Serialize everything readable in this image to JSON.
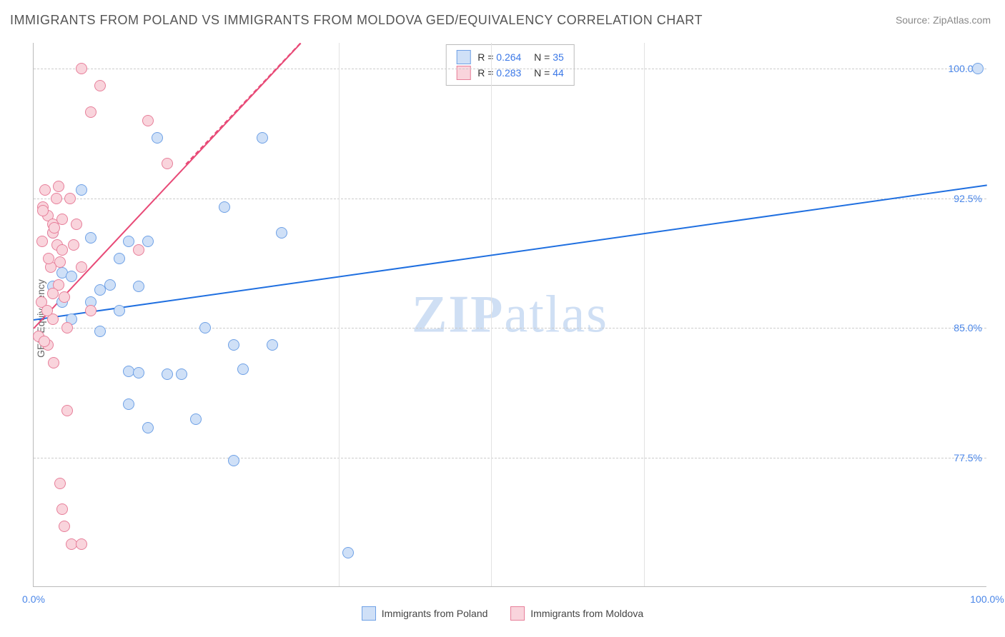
{
  "title": "IMMIGRANTS FROM POLAND VS IMMIGRANTS FROM MOLDOVA GED/EQUIVALENCY CORRELATION CHART",
  "source_prefix": "Source: ",
  "source_name": "ZipAtlas.com",
  "y_axis_label": "GED/Equivalency",
  "watermark_a": "ZIP",
  "watermark_b": "atlas",
  "chart": {
    "type": "scatter",
    "xlim": [
      0,
      100
    ],
    "ylim": [
      70,
      101.5
    ],
    "x_ticks": [
      {
        "v": 0,
        "label": "0.0%"
      },
      {
        "v": 100,
        "label": "100.0%"
      }
    ],
    "x_minor_ticks": [
      32,
      48,
      64
    ],
    "y_ticks": [
      {
        "v": 77.5,
        "label": "77.5%"
      },
      {
        "v": 85,
        "label": "85.0%"
      },
      {
        "v": 92.5,
        "label": "92.5%"
      },
      {
        "v": 100,
        "label": "100.0%"
      }
    ],
    "background_color": "#ffffff",
    "grid_color": "#cccccc",
    "series": [
      {
        "name": "Immigrants from Poland",
        "R": "0.264",
        "N": "35",
        "marker_fill": "#cfe0f7",
        "marker_stroke": "#6fa1e6",
        "trend_color": "#1f6fe0",
        "trend_dash": "none",
        "trend": {
          "x1": 0,
          "y1": 85.5,
          "x2": 100,
          "y2": 93.3
        },
        "points": [
          [
            2,
            90.5
          ],
          [
            3,
            88.2
          ],
          [
            4,
            88.0
          ],
          [
            8,
            87.5
          ],
          [
            6,
            86.5
          ],
          [
            9,
            86.0
          ],
          [
            7,
            84.8
          ],
          [
            10,
            82.5
          ],
          [
            11,
            82.4
          ],
          [
            14,
            82.3
          ],
          [
            10,
            80.6
          ],
          [
            12,
            79.2
          ],
          [
            17,
            79.7
          ],
          [
            15.5,
            82.3
          ],
          [
            22,
            82.6
          ],
          [
            18,
            85.0
          ],
          [
            21,
            84.0
          ],
          [
            25,
            84.0
          ],
          [
            5,
            93.0
          ],
          [
            10,
            90.0
          ],
          [
            12,
            90.0
          ],
          [
            13,
            96.0
          ],
          [
            20,
            92.0
          ],
          [
            26,
            90.5
          ],
          [
            24,
            96.0
          ],
          [
            33,
            72.0
          ],
          [
            21,
            77.3
          ],
          [
            99,
            100.0
          ],
          [
            4,
            85.5
          ],
          [
            6,
            90.2
          ],
          [
            7,
            87.2
          ],
          [
            3,
            86.5
          ],
          [
            11,
            87.4
          ],
          [
            9,
            89.0
          ],
          [
            2,
            87.4
          ]
        ]
      },
      {
        "name": "Immigrants from Moldova",
        "R": "0.283",
        "N": "44",
        "marker_fill": "#f9d4dc",
        "marker_stroke": "#e77f9a",
        "trend_color": "#e84a77",
        "trend_dash": "solid-then-dashed",
        "trend": {
          "x1": 0,
          "y1": 85.0,
          "x2": 28,
          "y2": 101.5
        },
        "trend_dashed": {
          "x1": 16,
          "y1": 94.5,
          "x2": 28,
          "y2": 101.5
        },
        "points": [
          [
            1,
            92.0
          ],
          [
            1.5,
            91.5
          ],
          [
            2,
            91.0
          ],
          [
            2,
            90.5
          ],
          [
            2.5,
            89.8
          ],
          [
            2.2,
            90.8
          ],
          [
            3,
            89.5
          ],
          [
            2.8,
            88.8
          ],
          [
            1.8,
            88.5
          ],
          [
            2.6,
            87.5
          ],
          [
            3.2,
            86.8
          ],
          [
            0.8,
            86.5
          ],
          [
            2.0,
            85.5
          ],
          [
            3.5,
            85.0
          ],
          [
            0.5,
            84.5
          ],
          [
            1.5,
            84.0
          ],
          [
            11,
            89.5
          ],
          [
            6,
            97.5
          ],
          [
            5,
            100.0
          ],
          [
            7,
            99.0
          ],
          [
            14,
            94.5
          ],
          [
            12,
            97.0
          ],
          [
            3.5,
            80.2
          ],
          [
            2.8,
            76.0
          ],
          [
            3.0,
            74.5
          ],
          [
            3.2,
            73.5
          ],
          [
            4.0,
            72.5
          ],
          [
            5.0,
            72.5
          ],
          [
            3.8,
            92.5
          ],
          [
            4.5,
            91.0
          ],
          [
            5.0,
            88.5
          ],
          [
            6.0,
            86.0
          ],
          [
            1.2,
            93.0
          ],
          [
            1.0,
            91.8
          ],
          [
            2.4,
            92.5
          ],
          [
            2.0,
            87.0
          ],
          [
            1.6,
            89.0
          ],
          [
            0.9,
            90.0
          ],
          [
            1.4,
            86.0
          ],
          [
            4.2,
            89.8
          ],
          [
            3.0,
            91.3
          ],
          [
            2.6,
            93.2
          ],
          [
            1.1,
            84.2
          ],
          [
            2.1,
            83.0
          ]
        ]
      }
    ]
  },
  "legend_bottom_labels": {
    "a": "Immigrants from Poland",
    "b": "Immigrants from Moldova"
  }
}
